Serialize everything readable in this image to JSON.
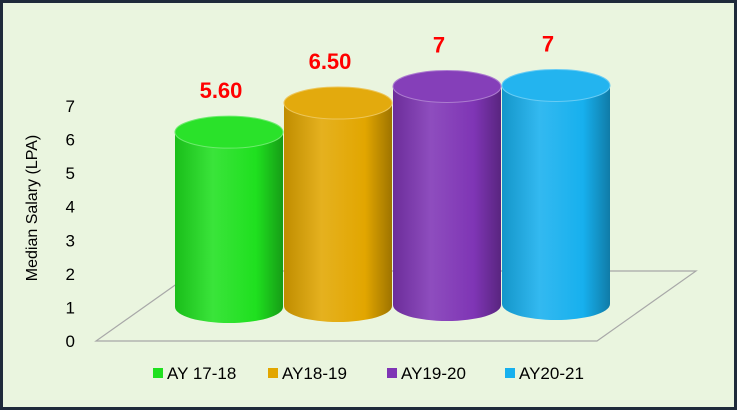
{
  "chart_data": {
    "type": "bar",
    "style": "3d-cylinder",
    "categories": [
      "AY 17-18",
      "AY18-19",
      "AY19-20",
      "AY20-21"
    ],
    "values": [
      5.6,
      6.5,
      7,
      7
    ],
    "data_labels": [
      "5.60",
      "6.50",
      "7",
      "7"
    ],
    "colors": [
      "#1fe01f",
      "#e2a600",
      "#7f35b5",
      "#17b0ee"
    ],
    "ylabel": "Median Salary (LPA)",
    "xlabel": "",
    "title": "",
    "ylim": [
      0,
      7
    ],
    "yticks": [
      "0",
      "1",
      "2",
      "3",
      "4",
      "5",
      "6",
      "7"
    ],
    "legend_position": "bottom",
    "grid": false,
    "label_color": "#ff0000",
    "background": "#eaf5df"
  }
}
